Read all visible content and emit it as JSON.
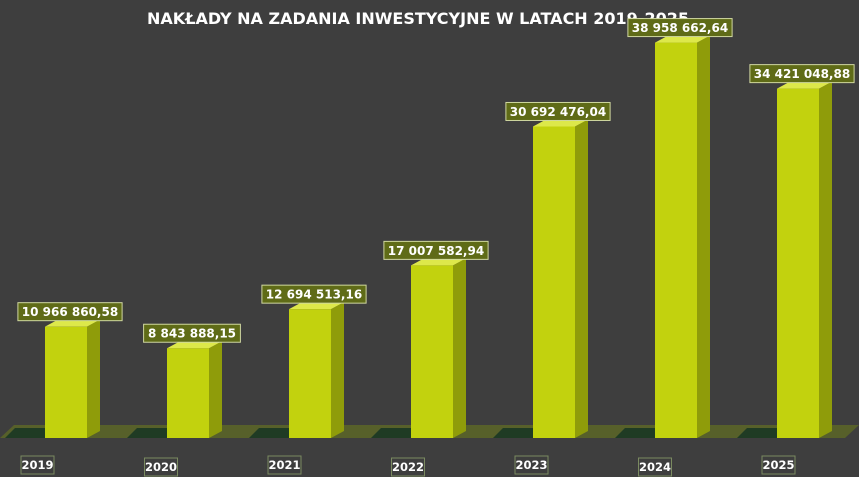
{
  "chart_data": {
    "type": "bar",
    "title": "NAKŁADY NA ZADANIA INWESTYCYJNE W LATACH 2019-2025",
    "categories": [
      "2019",
      "2020",
      "2021",
      "2022",
      "2023",
      "2024",
      "2025"
    ],
    "values": [
      10966860.58,
      8843888.15,
      12694513.16,
      17007582.94,
      30692476.04,
      38958662.64,
      34421048.88
    ],
    "value_labels": [
      "10 966 860,58",
      "8 843 888,15",
      "12 694 513,16",
      "17 007 582,94",
      "30 692 476,04",
      "38 958 662,64",
      "34 421 048,88"
    ],
    "ylim": [
      0,
      40000000
    ],
    "grid": false,
    "legend": "none",
    "style": "3d-column"
  },
  "colors": {
    "background": "#3e3e3e",
    "bar_front": "#c2d20e",
    "bar_side": "#8f9c0a",
    "bar_top": "#dde84a",
    "floor": "#57602a",
    "floor_stripe": "#1f3b24",
    "label_box": "#5f6b17",
    "label_border": "#d0d8a0"
  }
}
